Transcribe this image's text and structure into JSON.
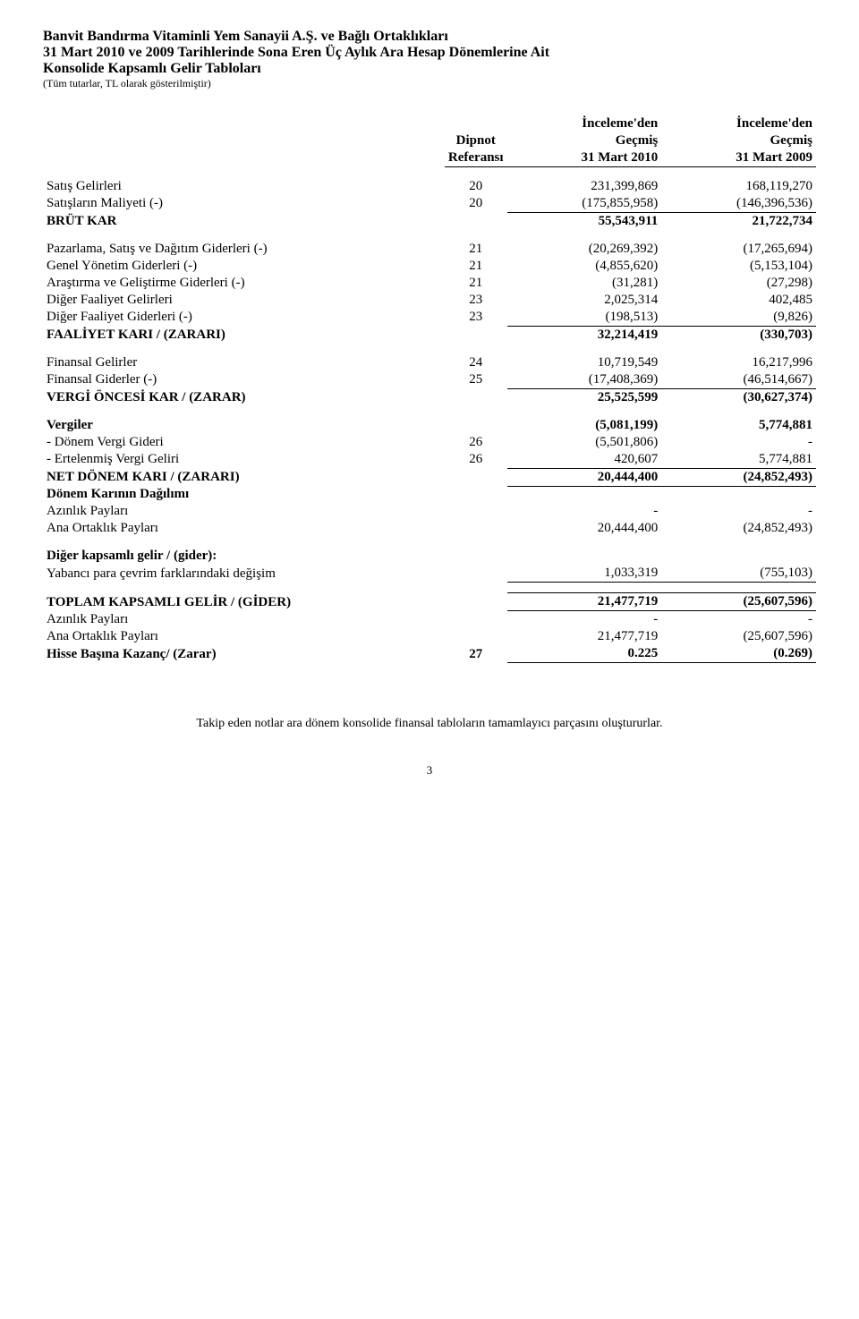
{
  "header": {
    "line1": "Banvit Bandırma Vitaminli Yem Sanayii A.Ş. ve Bağlı Ortaklıkları",
    "line2": "31 Mart 2010 ve 2009 Tarihlerinde Sona Eren Üç Aylık Ara Hesap Dönemlerine Ait",
    "line3": "Konsolide Kapsamlı Gelir Tabloları",
    "line4": "(Tüm tutarlar, TL olarak gösterilmiştir)"
  },
  "col_headers": {
    "ref_l1": "Dipnot",
    "ref_l2": "Referansı",
    "c1_l1": "İnceleme'den",
    "c1_l2": "Geçmiş",
    "c1_l3": "31 Mart 2010",
    "c2_l1": "İnceleme'den",
    "c2_l2": "Geçmiş",
    "c2_l3": "31 Mart 2009"
  },
  "rows": {
    "satis_gelirleri": {
      "label": "Satış Gelirleri",
      "ref": "20",
      "v1": "231,399,869",
      "v2": "168,119,270"
    },
    "satislarin_maliyeti": {
      "label": "Satışların Maliyeti (-)",
      "ref": "20",
      "v1": "(175,855,958)",
      "v2": "(146,396,536)"
    },
    "brut_kar": {
      "label": "BRÜT KAR",
      "ref": "",
      "v1": "55,543,911",
      "v2": "21,722,734"
    },
    "pazarlama": {
      "label": "Pazarlama, Satış ve Dağıtım Giderleri (-)",
      "ref": "21",
      "v1": "(20,269,392)",
      "v2": "(17,265,694)"
    },
    "genel_yonetim": {
      "label": "Genel Yönetim Giderleri (-)",
      "ref": "21",
      "v1": "(4,855,620)",
      "v2": "(5,153,104)"
    },
    "arastirma": {
      "label": "Araştırma ve Geliştirme Giderleri (-)",
      "ref": "21",
      "v1": "(31,281)",
      "v2": "(27,298)"
    },
    "diger_faaliyet_gelir": {
      "label": "Diğer Faaliyet Gelirleri",
      "ref": "23",
      "v1": "2,025,314",
      "v2": "402,485"
    },
    "diger_faaliyet_gider": {
      "label": "Diğer Faaliyet Giderleri (-)",
      "ref": "23",
      "v1": "(198,513)",
      "v2": "(9,826)"
    },
    "faaliyet_kari": {
      "label": "FAALİYET KARI / (ZARARI)",
      "ref": "",
      "v1": "32,214,419",
      "v2": "(330,703)"
    },
    "fin_gelirler": {
      "label": "Finansal Gelirler",
      "ref": "24",
      "v1": "10,719,549",
      "v2": "16,217,996"
    },
    "fin_giderler": {
      "label": "Finansal Giderler (-)",
      "ref": "25",
      "v1": "(17,408,369)",
      "v2": "(46,514,667)"
    },
    "vergi_oncesi": {
      "label": "VERGİ ÖNCESİ KAR / (ZARAR)",
      "ref": "",
      "v1": "25,525,599",
      "v2": "(30,627,374)"
    },
    "vergiler": {
      "label": "Vergiler",
      "ref": "",
      "v1": "(5,081,199)",
      "v2": "5,774,881"
    },
    "donem_vergi_gideri": {
      "label": "- Dönem Vergi Gideri",
      "ref": "26",
      "v1": "(5,501,806)",
      "v2": "-"
    },
    "ertelenmis_vergi": {
      "label": "- Ertelenmiş Vergi Geliri",
      "ref": "26",
      "v1": "420,607",
      "v2": "5,774,881"
    },
    "net_donem_kari": {
      "label": "NET DÖNEM KARI / (ZARARI)",
      "ref": "",
      "v1": "20,444,400",
      "v2": "(24,852,493)"
    },
    "donem_karinin_dagilimi": {
      "label": "Dönem  Karının Dağılımı",
      "ref": "",
      "v1": "",
      "v2": ""
    },
    "azinlik_paylari_1": {
      "label": "Azınlık Payları",
      "ref": "",
      "v1": "-",
      "v2": "-"
    },
    "ana_ortaklik_1": {
      "label": "Ana Ortaklık Payları",
      "ref": "",
      "v1": "20,444,400",
      "v2": "(24,852,493)"
    },
    "diger_kapsamli": {
      "label": "Diğer kapsamlı gelir / (gider):",
      "ref": "",
      "v1": "",
      "v2": ""
    },
    "yabanci_para": {
      "label": "Yabancı para çevrim farklarındaki değişim",
      "ref": "",
      "v1": "1,033,319",
      "v2": "(755,103)"
    },
    "toplam_kapsamli": {
      "label": "TOPLAM KAPSAMLI GELİR / (GİDER)",
      "ref": "",
      "v1": "21,477,719",
      "v2": "(25,607,596)"
    },
    "azinlik_paylari_2": {
      "label": "Azınlık Payları",
      "ref": "",
      "v1": "-",
      "v2": "-"
    },
    "ana_ortaklik_2": {
      "label": "Ana Ortaklık Payları",
      "ref": "",
      "v1": "21,477,719",
      "v2": "(25,607,596)"
    },
    "hisse_basina": {
      "label": "Hisse Başına Kazanç/ (Zarar)",
      "ref": "27",
      "v1": "0.225",
      "v2": "(0.269)"
    }
  },
  "footer": "Takip eden notlar ara dönem konsolide finansal tabloların tamamlayıcı parçasını oluştururlar.",
  "page_number": "3"
}
